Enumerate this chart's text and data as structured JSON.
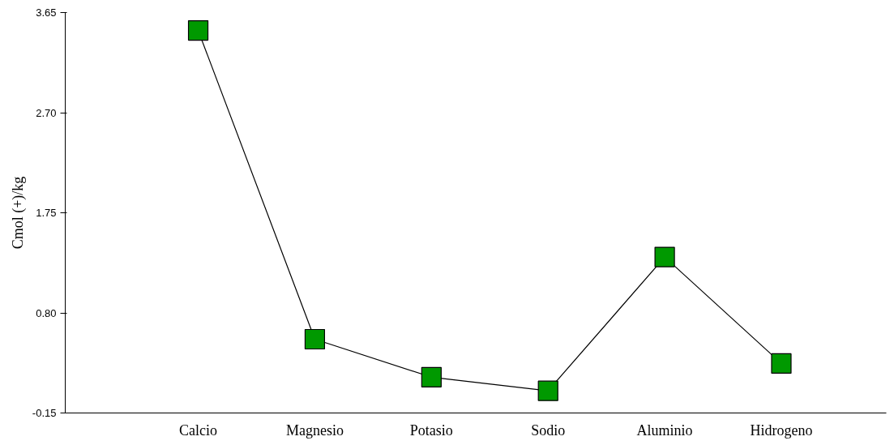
{
  "chart_data": {
    "type": "line",
    "ylabel": "Cmol (+)/kg",
    "categories": [
      "Calcio",
      "Magnesio",
      "Potasio",
      "Sodio",
      "Aluminio",
      "Hidrogeno"
    ],
    "series": [
      {
        "color": "#009900",
        "values": [
          3.48,
          0.55,
          0.19,
          0.06,
          1.33,
          0.32
        ]
      }
    ],
    "ylim": [
      -0.15,
      3.65
    ],
    "yticks": [
      -0.15,
      {
        "value": 0.8,
        "label": "0.80"
      },
      {
        "value": 1.75,
        "label": "1.75"
      },
      {
        "value": 2.7,
        "label": "2.70"
      },
      3.65
    ],
    "marker": "square",
    "line_style": "solid",
    "grid": false
  }
}
